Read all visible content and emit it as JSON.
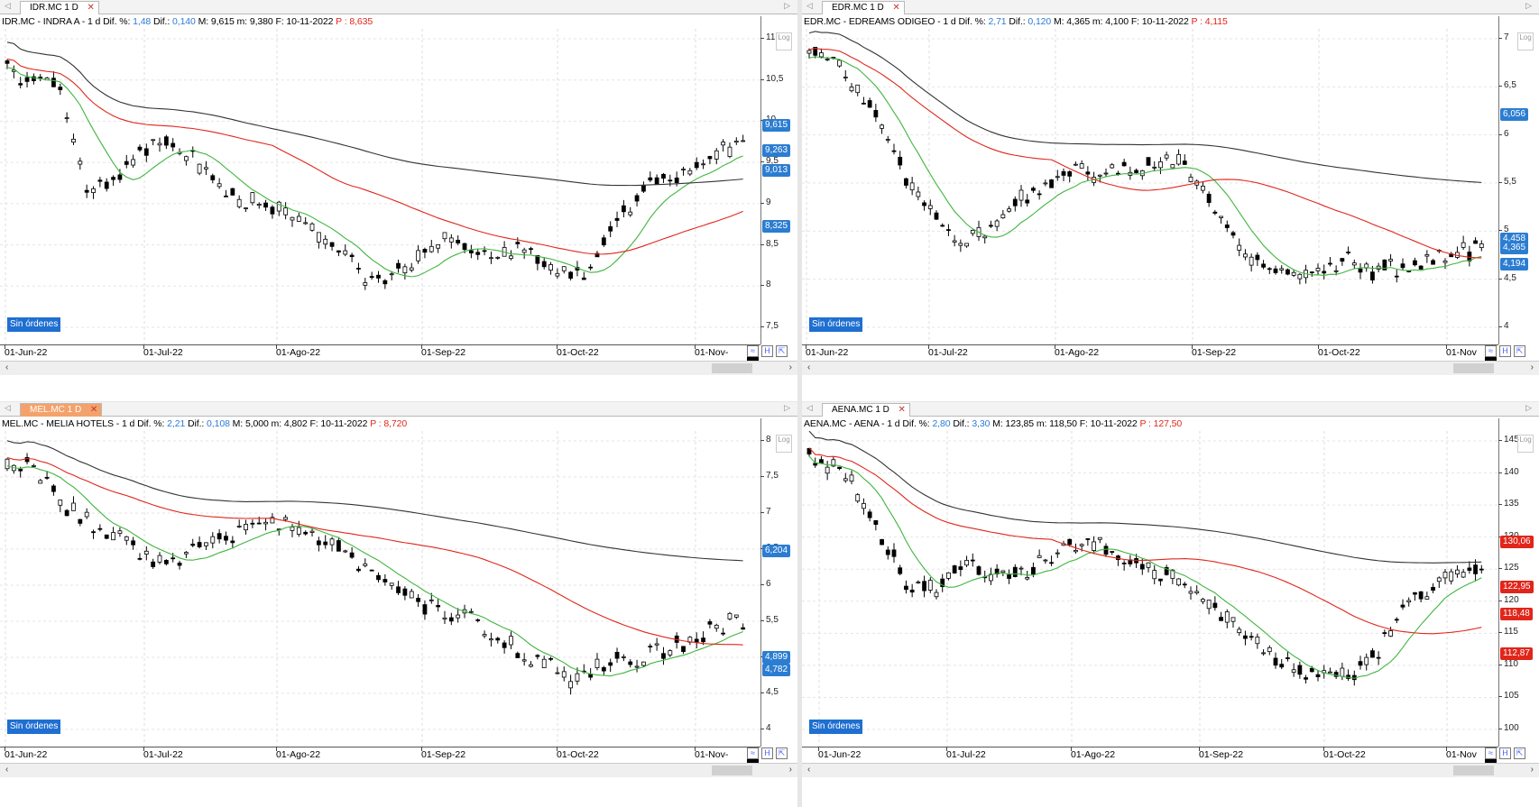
{
  "panels": [
    {
      "tab": "IDR.MC 1 D",
      "symbol": "IDR.MC - INDRA A",
      "timeframe": "1 d",
      "dif_pct_label": "Dif. %:",
      "dif_pct": "1,48",
      "dif_label": "Dif.:",
      "dif": "0,140",
      "high_label": "M:",
      "high": "9,615",
      "low_label": "m:",
      "low": "9,380",
      "date_label": "F:",
      "date": "10-11-2022",
      "p_label": "P :",
      "p": "8,635",
      "log_label": "Log",
      "orders": "Sin órdenes",
      "yticks": [
        "11",
        "10,5",
        "10",
        "9,5",
        "9",
        "8,5",
        "8",
        "7,5"
      ],
      "badges": [
        {
          "text": "9,615",
          "color": "#2b7dd1"
        },
        {
          "text": "9,263",
          "color": "#2b7dd1"
        },
        {
          "text": "9,013",
          "color": "#2b7dd1"
        },
        {
          "text": "8,325",
          "color": "#2b7dd1"
        }
      ],
      "xlabels": [
        "01-Jun-22",
        "01-Jul-22",
        "01-Ago-22",
        "01-Sep-22",
        "01-Oct-22",
        "01-Nov-"
      ]
    },
    {
      "tab": "EDR.MC 1 D",
      "symbol": "EDR.MC - EDREAMS ODIGEO",
      "timeframe": "1 d",
      "dif_pct_label": "Dif. %:",
      "dif_pct": "2,71",
      "dif_label": "Dif.:",
      "dif": "0,120",
      "high_label": "M:",
      "high": "4,365",
      "low_label": "m:",
      "low": "4,100",
      "date_label": "F:",
      "date": "10-11-2022",
      "p_label": "P :",
      "p": "4,115",
      "log_label": "Log",
      "orders": "Sin órdenes",
      "yticks": [
        "7",
        "6,5",
        "6",
        "5,5",
        "5",
        "4,5",
        "4"
      ],
      "badges": [
        {
          "text": "6,056",
          "color": "#2b7dd1"
        },
        {
          "text": "4,458",
          "color": "#2b7dd1"
        },
        {
          "text": "4,365",
          "color": "#2b7dd1"
        },
        {
          "text": "4,194",
          "color": "#2b7dd1"
        }
      ],
      "xlabels": [
        "01-Jun-22",
        "01-Jul-22",
        "01-Ago-22",
        "01-Sep-22",
        "01-Oct-22",
        "01-Nov"
      ]
    },
    {
      "tab": "MEL.MC 1 D",
      "symbol": "MEL.MC - MELIA HOTELS",
      "timeframe": "1 d",
      "dif_pct_label": "Dif. %:",
      "dif_pct": "2,21",
      "dif_label": "Dif.:",
      "dif": "0,108",
      "high_label": "M:",
      "high": "5,000",
      "low_label": "m:",
      "low": "4,802",
      "date_label": "F:",
      "date": "10-11-2022",
      "p_label": "P :",
      "p": "8,720",
      "log_label": "Log",
      "orders": "Sin órdenes",
      "yticks": [
        "8",
        "7,5",
        "7",
        "6,5",
        "6",
        "5,5",
        "5",
        "4,5",
        "4"
      ],
      "badges": [
        {
          "text": "6,204",
          "color": "#2b7dd1"
        },
        {
          "text": "4,899",
          "color": "#2b7dd1"
        },
        {
          "text": "4,782",
          "color": "#2b7dd1"
        }
      ],
      "xlabels": [
        "01-Jun-22",
        "01-Jul-22",
        "01-Ago-22",
        "01-Sep-22",
        "01-Oct-22",
        "01-Nov-"
      ]
    },
    {
      "tab": "AENA.MC 1 D",
      "symbol": "AENA.MC - AENA",
      "timeframe": "1 d",
      "dif_pct_label": "Dif. %:",
      "dif_pct": "2,80",
      "dif_label": "Dif.:",
      "dif": "3,30",
      "high_label": "M:",
      "high": "123,85",
      "low_label": "m:",
      "low": "118,50",
      "date_label": "F:",
      "date": "10-11-2022",
      "p_label": "P :",
      "p": "127,50",
      "log_label": "Log",
      "orders": "Sin órdenes",
      "yticks": [
        "145",
        "140",
        "135",
        "130",
        "125",
        "120",
        "115",
        "110",
        "105",
        "100"
      ],
      "badges": [
        {
          "text": "130,06",
          "color": "#e0261b"
        },
        {
          "text": "122,95",
          "color": "#e0261b"
        },
        {
          "text": "118,48",
          "color": "#e0261b"
        },
        {
          "text": "112,87",
          "color": "#e0261b"
        }
      ],
      "xlabels": [
        "01-Jun-22",
        "01-Jul-22",
        "01-Ago-22",
        "01-Sep-22",
        "01-Oct-22",
        "01-Nov"
      ]
    }
  ],
  "colors": {
    "ma_fast": "#3fb53f",
    "ma_mid": "#e0261b",
    "ma_slow": "#333333",
    "candle": "#000000",
    "badge_blue": "#2b7dd1",
    "badge_red": "#e0261b"
  }
}
